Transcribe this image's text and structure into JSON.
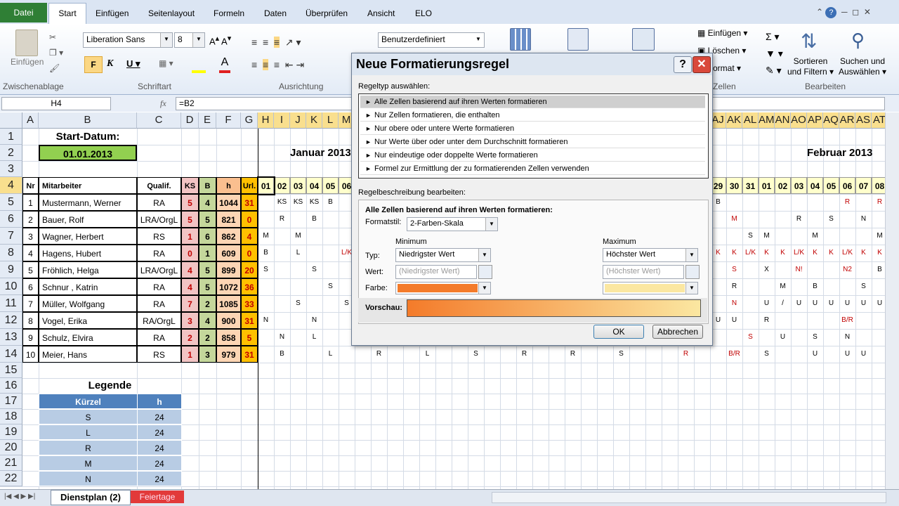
{
  "ribbon": {
    "tabs": [
      "Datei",
      "Start",
      "Einfügen",
      "Seitenlayout",
      "Formeln",
      "Daten",
      "Überprüfen",
      "Ansicht",
      "ELO"
    ],
    "paste": "Einfügen",
    "font_name": "Liberation Sans",
    "font_size": "8",
    "number_format": "Benutzerdefiniert",
    "insert": "Einfügen",
    "delete": "Löschen",
    "format": "Format",
    "sort": [
      "Sortieren",
      "und Filtern"
    ],
    "find": [
      "Suchen und",
      "Auswählen"
    ],
    "groups": {
      "clipboard": "Zwischenablage",
      "font": "Schriftart",
      "alignment": "Ausrichtung",
      "cells": "Zellen",
      "editing": "Bearbeiten"
    }
  },
  "formula_bar": {
    "name_box": "H4",
    "fx": "fx",
    "formula": "=B2"
  },
  "sheet": {
    "columns": [
      "A",
      "B",
      "C",
      "D",
      "E",
      "F",
      "G",
      "H",
      "I",
      "J",
      "K",
      "L",
      "M",
      "AJ",
      "AK",
      "AL",
      "AM",
      "AN",
      "AO",
      "AP",
      "AQ",
      "AR",
      "AS",
      "AT"
    ],
    "rows": [
      1,
      2,
      3,
      4,
      5,
      6,
      7,
      8,
      9,
      10,
      11,
      12,
      13,
      14,
      15,
      16,
      17,
      18,
      19,
      20,
      21,
      22
    ],
    "cells": {
      "B1": "Start-Datum:",
      "B2": "01.01.2013",
      "J2": "Januar 2013",
      "AP2": "Februar 2013",
      "A4": "Nr",
      "B4": "Mitarbeiter",
      "C4": "Qualif.",
      "D4": "KS",
      "E4": "B",
      "F4": "h",
      "G4": "Url.",
      "H4": "01",
      "I4": "02",
      "J4": "03",
      "K4": "04",
      "L4": "05",
      "M4": "06",
      "AJ4": "29",
      "AK4": "30",
      "AL4": "31",
      "AM4": "01",
      "AN4": "02",
      "AO4": "03",
      "AP4": "04",
      "AQ4": "05",
      "AR4": "06",
      "AS4": "07",
      "AT4": "08",
      "A5": 1,
      "B5": "Mustermann, Werner",
      "C5": "RA",
      "D5": 5,
      "E5": 4,
      "F5": 1044,
      "G5": 31,
      "A6": 2,
      "B6": "Bauer, Rolf",
      "C6": "LRA/OrgL",
      "D6": 5,
      "E6": 5,
      "F6": 821,
      "G6": 0,
      "A7": 3,
      "B7": "Wagner, Herbert",
      "C7": "RS",
      "D7": 1,
      "E7": 6,
      "F7": 862,
      "G7": 4,
      "A8": 4,
      "B8": "Hagens, Hubert",
      "C8": "RA",
      "D8": 0,
      "E8": 1,
      "F8": 609,
      "G8": 0,
      "A9": 5,
      "B9": "Fröhlich, Helga",
      "C9": "LRA/OrgL",
      "D9": 4,
      "E9": 5,
      "F9": 899,
      "G9": 20,
      "A10": 6,
      "B10": "Schnur , Katrin",
      "C10": "RA",
      "D10": 4,
      "E10": 5,
      "F10": 1072,
      "G10": 36,
      "A11": 7,
      "B11": "Müller, Wolfgang",
      "C11": "RA",
      "D11": 7,
      "E11": 2,
      "F11": 1085,
      "G11": 33,
      "A12": 8,
      "B12": "Vogel, Erika",
      "C12": "RA/OrgL",
      "D12": 3,
      "E12": 4,
      "F12": 900,
      "G12": 31,
      "A13": 9,
      "B13": "Schulz, Elvira",
      "C13": "RA",
      "D13": 2,
      "E13": 2,
      "F13": 858,
      "G13": 5,
      "A14": 10,
      "B14": "Meier, Hans",
      "C14": "RS",
      "D14": 1,
      "E14": 3,
      "F14": 979,
      "G14": 31,
      "I5": "KS",
      "J5": "KS",
      "K5": "KS",
      "L5": "B",
      "AJ5": "B",
      "AR5": "R",
      "AT5": "R",
      "I6": "R",
      "K6": "B",
      "AK6": "M",
      "AO6": "R",
      "AQ6": "S",
      "AS6": "N",
      "H7": "M",
      "J7": "M",
      "AL7": "S",
      "AM7": "M",
      "AP7": "M",
      "AT7": "M",
      "H8": "B",
      "J8": "L",
      "M8": "L/K",
      "AJ8": "K",
      "AK8": "K",
      "AL8": "L/K",
      "AM8": "K",
      "AN8": "K",
      "AO8": "L/K",
      "AP8": "K",
      "AQ8": "K",
      "AR8": "L/K",
      "AS8": "K",
      "AT8": "K",
      "H9": "S",
      "K9": "S",
      "AK9": "S",
      "AM9": "X",
      "AO9": "N!",
      "AR9": "N2",
      "AT9": "B",
      "L10": "S",
      "AK10": "R",
      "AN10": "M",
      "AP10": "B",
      "AS10": "S",
      "J11": "S",
      "M11": "S",
      "AK11": "N",
      "AM11": "U",
      "AN11": "/",
      "AO11": "U",
      "AP11": "U",
      "AQ11": "U",
      "AR11": "U",
      "AS11": "U",
      "AT11": "U",
      "H12": "N",
      "K12": "N",
      "AJ12": "U",
      "AK12": "U",
      "AM12": "R",
      "AR12": "B/R",
      "I13": "N",
      "K13": "L",
      "AL13": "S",
      "AN13": "U",
      "AP13": "S",
      "AR13": "N",
      "I14": "B",
      "L14": "L",
      "O14": "R",
      "R14": "L",
      "U14": "S",
      "X14": "R",
      "AA14": "R",
      "AD14": "S",
      "AH14": "R",
      "AK14": "B/R",
      "AM14": "S",
      "AP14": "U",
      "AR14": "U",
      "AS14": "U",
      "B16": "Legende",
      "B17": "Kürzel",
      "C17": "h",
      "B18": "S",
      "C18": 24,
      "B19": "L",
      "C19": 24,
      "B20": "R",
      "C20": 24,
      "B21": "M",
      "C21": 24,
      "B22": "N",
      "C22": 24
    }
  },
  "sheet_tabs": [
    "Dienstplan (2)",
    "Feiertage"
  ],
  "dialog": {
    "title": "Neue Formatierungsregel",
    "help": "?",
    "rule_type_label": "Regeltyp auswählen:",
    "rule_types": [
      "Alle Zellen basierend auf ihren Werten formatieren",
      "Nur Zellen formatieren, die enthalten",
      "Nur obere oder untere Werte formatieren",
      "Nur Werte über oder unter dem Durchschnitt formatieren",
      "Nur eindeutige oder doppelte Werte formatieren",
      "Formel zur Ermittlung der zu formatierenden Zellen verwenden"
    ],
    "edit_label": "Regelbeschreibung bearbeiten:",
    "heading": "Alle Zellen basierend auf ihren Werten formatieren:",
    "format_style_label": "Formatstil:",
    "format_style": "2-Farben-Skala",
    "minimum": "Minimum",
    "maximum": "Maximum",
    "type_label": "Typ:",
    "min_type": "Niedrigster Wert",
    "max_type": "Höchster Wert",
    "value_label": "Wert:",
    "min_value": "(Niedrigster Wert)",
    "max_value": "(Höchster Wert)",
    "color_label": "Farbe:",
    "min_color": "#f47b2a",
    "max_color": "#fbe7a1",
    "preview_label": "Vorschau:",
    "ok": "OK",
    "cancel": "Abbrechen"
  }
}
